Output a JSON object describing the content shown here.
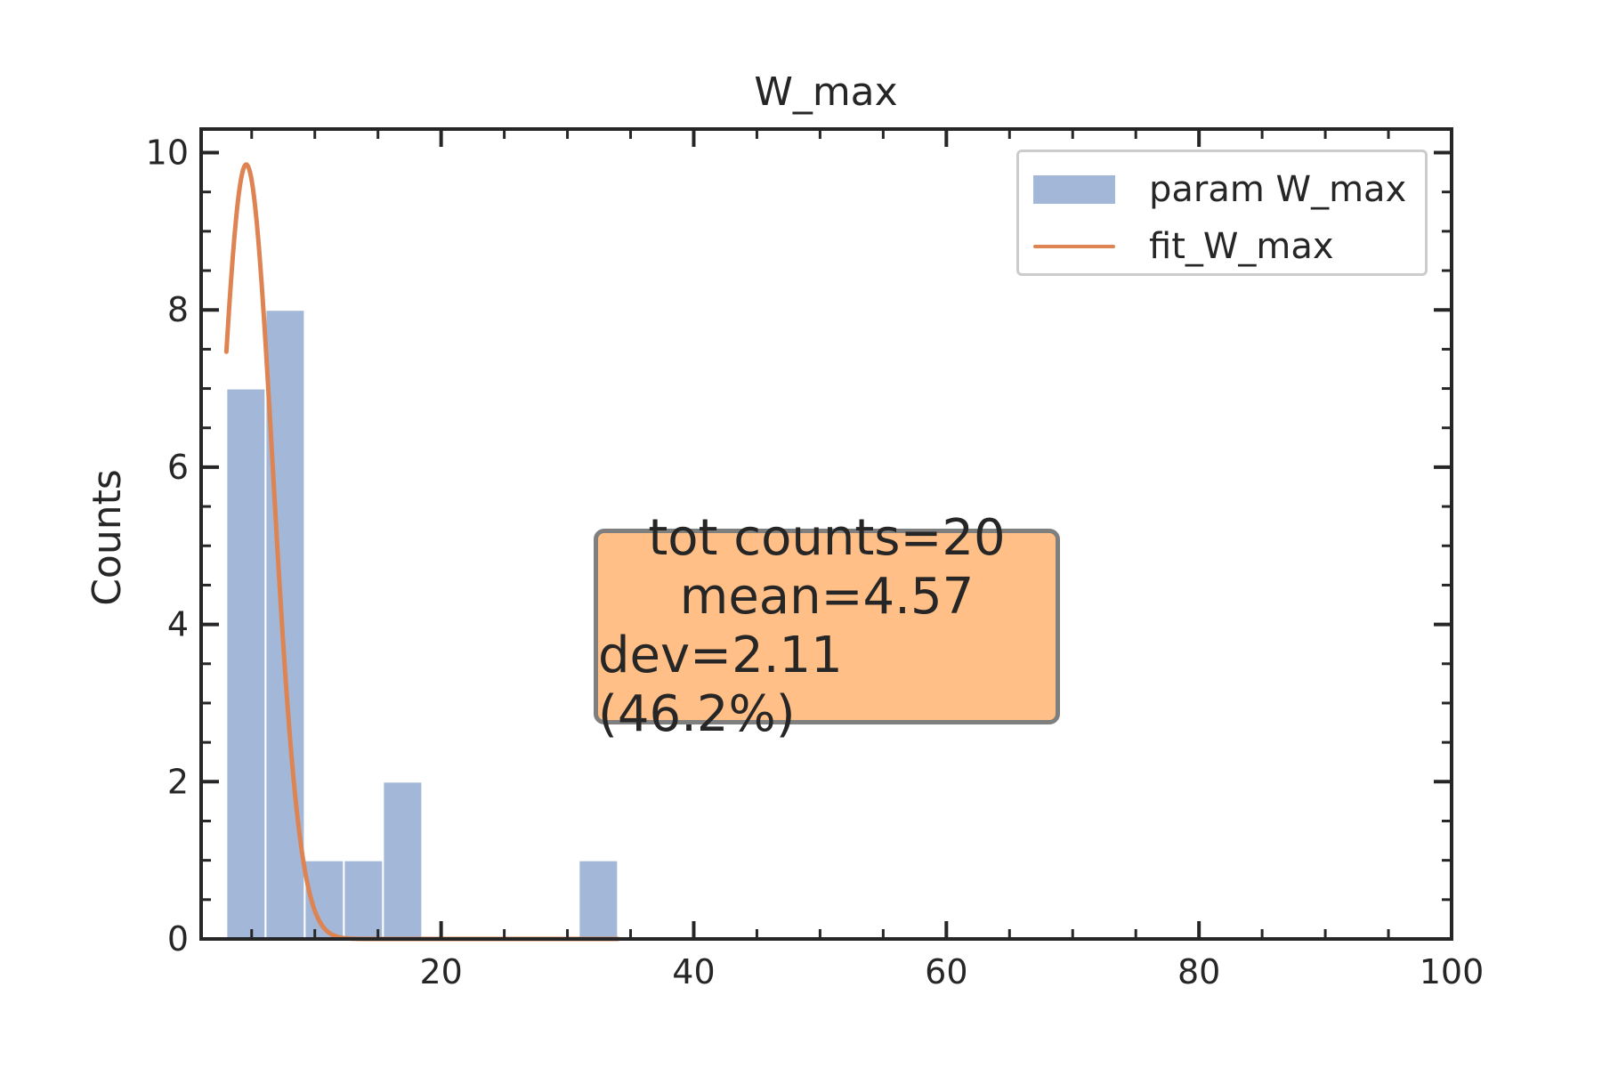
{
  "chart_data": {
    "type": "bar",
    "title": "W_max",
    "xlabel": "",
    "ylabel": "Counts",
    "xlim": [
      1,
      100
    ],
    "ylim": [
      0,
      10.3
    ],
    "xticks": [
      20,
      40,
      60,
      80,
      100
    ],
    "yticks": [
      0,
      2,
      4,
      6,
      8,
      10
    ],
    "grid": false,
    "legend_position": "top-right",
    "bins": [
      {
        "start": 3.0,
        "end": 6.1,
        "count": 7
      },
      {
        "start": 6.1,
        "end": 9.2,
        "count": 8
      },
      {
        "start": 9.2,
        "end": 12.3,
        "count": 1
      },
      {
        "start": 12.3,
        "end": 15.4,
        "count": 1
      },
      {
        "start": 15.4,
        "end": 18.5,
        "count": 2
      },
      {
        "start": 18.5,
        "end": 21.6,
        "count": 0
      },
      {
        "start": 21.6,
        "end": 24.7,
        "count": 0
      },
      {
        "start": 24.7,
        "end": 27.8,
        "count": 0
      },
      {
        "start": 27.8,
        "end": 30.9,
        "count": 0
      },
      {
        "start": 30.9,
        "end": 34.0,
        "count": 1
      }
    ],
    "series": [
      {
        "name": "param W_max",
        "kind": "histogram",
        "color": "#a3b7d9"
      },
      {
        "name": "fit_W_max",
        "kind": "gaussian-fit",
        "color": "#dd8452",
        "fit": {
          "amplitude": 9.85,
          "mu": 4.57,
          "sigma": 2.11,
          "x_start": 3.0,
          "x_end": 34.0
        }
      }
    ]
  },
  "legend": {
    "items": [
      {
        "label": "param W_max"
      },
      {
        "label": "fit_W_max"
      }
    ]
  },
  "stats_box": {
    "line1": "tot counts=20",
    "line2": "mean=4.57",
    "line3": "dev=2.11 (46.2%)",
    "background": "#ffbf86",
    "border": "#7f7f7f"
  },
  "colors": {
    "bar": "#a3b7d9",
    "fit": "#dd8452",
    "axis": "#262626",
    "text": "#262626"
  }
}
